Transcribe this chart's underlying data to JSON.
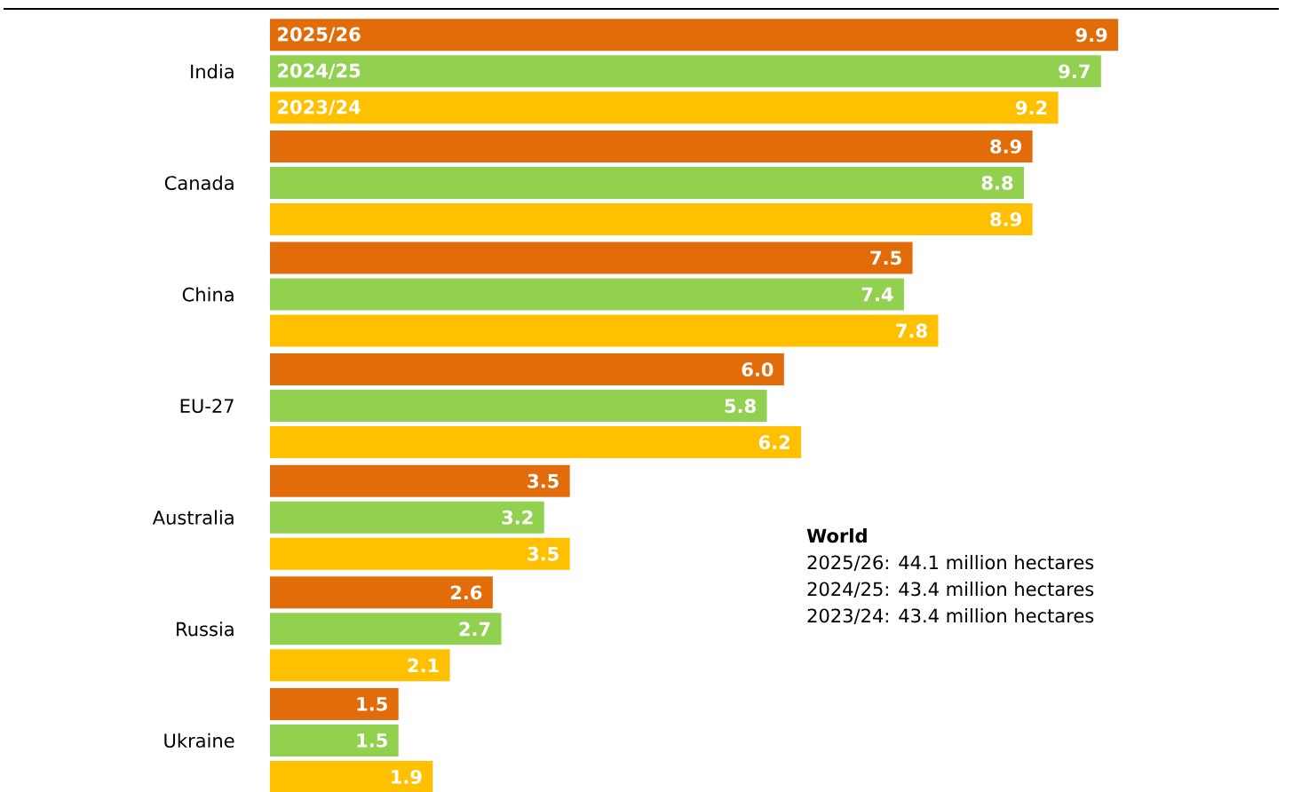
{
  "chart_data": {
    "type": "bar",
    "orientation": "horizontal",
    "categories": [
      "India",
      "Canada",
      "China",
      "EU-27",
      "Australia",
      "Russia",
      "Ukraine"
    ],
    "series": [
      {
        "name": "2025/26",
        "color": "#e36c0a",
        "values": [
          9.9,
          8.9,
          7.5,
          6.0,
          3.5,
          2.6,
          1.5
        ],
        "value_labels": [
          "9.9",
          "8.9",
          "7.5",
          "6.0",
          "3.5",
          "2.6",
          "1.5"
        ]
      },
      {
        "name": "2024/25",
        "color": "#92d050",
        "values": [
          9.7,
          8.8,
          7.4,
          5.8,
          3.2,
          2.7,
          1.5
        ],
        "value_labels": [
          "9.7",
          "8.8",
          "7.4",
          "5.8",
          "3.2",
          "2.7",
          "1.5"
        ]
      },
      {
        "name": "2023/24",
        "color": "#ffc000",
        "values": [
          9.2,
          8.9,
          7.8,
          6.2,
          3.5,
          2.1,
          1.9
        ],
        "value_labels": [
          "9.2",
          "8.9",
          "7.8",
          "6.2",
          "3.5",
          "2.1",
          "1.9"
        ]
      }
    ],
    "annotations": [
      "World",
      "2025/26: 44.1 million hectares",
      "2024/25: 43.4 million hectares",
      "2023/24: 43.4 million hectares"
    ]
  }
}
